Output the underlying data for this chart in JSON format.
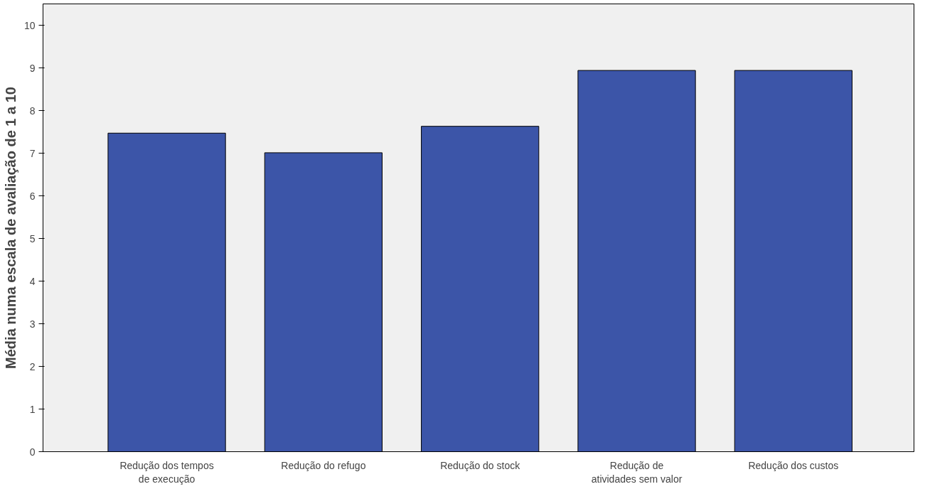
{
  "chart_data": {
    "type": "bar",
    "ylabel": "Média numa escala de avaliação de 1 a 10",
    "categories": [
      "Redução dos tempos de execução",
      "Redução do refugo",
      "Redução do stock",
      "Redução de atividades sem valor",
      "Redução dos custos"
    ],
    "values": [
      7.47,
      7.01,
      7.63,
      8.94,
      8.94
    ],
    "color": "#3c55a8",
    "ylim": [
      0,
      10.5
    ],
    "yticks": [
      0,
      1,
      2,
      3,
      4,
      5,
      6,
      7,
      8,
      9,
      10
    ],
    "grid": false
  }
}
